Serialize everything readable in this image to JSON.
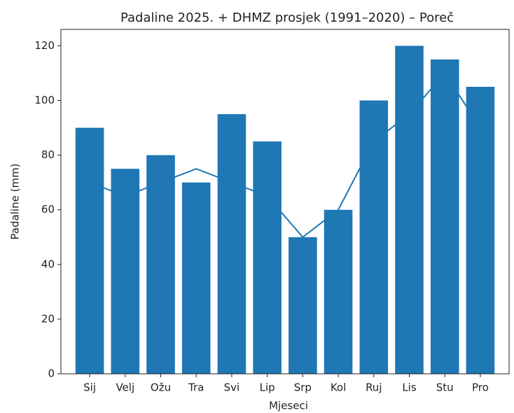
{
  "chart_data": {
    "type": "bar",
    "title": "Padaline 2025. + DHMZ prosjek (1991–2020) – Poreč",
    "x_label": "Mjeseci",
    "y_label": "Padaline (mm)",
    "categories": [
      "Sij",
      "Velj",
      "Ožu",
      "Tra",
      "Svi",
      "Lip",
      "Srp",
      "Kol",
      "Ruj",
      "Lis",
      "Stu",
      "Pro"
    ],
    "series": [
      {
        "type": "bar",
        "color": "#1f77b4",
        "values": [
          90,
          75,
          80,
          70,
          95,
          85,
          50,
          60,
          100,
          120,
          115,
          105
        ]
      },
      {
        "type": "line",
        "color": "#1f77b4",
        "values": [
          70,
          65,
          70,
          75,
          70,
          65,
          50,
          60,
          85,
          95,
          110,
          90
        ]
      }
    ],
    "ylim": [
      0,
      126
    ],
    "yticks": [
      0,
      20,
      40,
      60,
      80,
      100,
      120
    ],
    "grid": false
  }
}
